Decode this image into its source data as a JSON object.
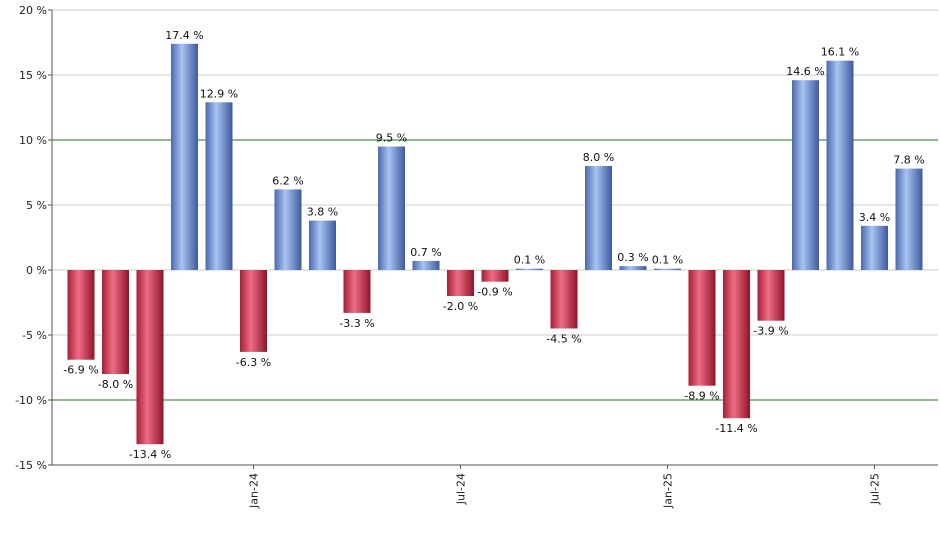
{
  "chart_data": {
    "type": "bar",
    "categories": [
      "",
      "",
      "",
      "",
      "",
      "Jan-24",
      "",
      "",
      "",
      "",
      "",
      "Jul-24",
      "",
      "",
      "",
      "",
      "",
      "Jan-25",
      "",
      "",
      "",
      "",
      "",
      "Jul-25",
      ""
    ],
    "values": [
      -6.9,
      -8.0,
      -13.4,
      17.4,
      12.9,
      -6.3,
      6.2,
      3.8,
      -3.3,
      9.5,
      0.7,
      -2.0,
      -0.9,
      0.1,
      -4.5,
      8.0,
      0.3,
      0.1,
      -8.9,
      -11.4,
      -3.9,
      14.6,
      16.1,
      3.4,
      7.8
    ],
    "data_labels": [
      "-6.9 %",
      "-8.0 %",
      "-13.4 %",
      "17.4 %",
      "12.9 %",
      "-6.3 %",
      "6.2 %",
      "3.8 %",
      "-3.3 %",
      "9.5 %",
      "0.7 %",
      "-2.0 %",
      "-0.9 %",
      "0.1 %",
      "-4.5 %",
      "8.0 %",
      "0.3 %",
      "0.1 %",
      "-8.9 %",
      "-11.4 %",
      "-3.9 %",
      "14.6 %",
      "16.1 %",
      "3.4 %",
      "7.8 %"
    ],
    "ylim": [
      -15,
      20
    ],
    "yticks": [
      20,
      15,
      10,
      5,
      0,
      -5,
      -10,
      -15
    ],
    "ytick_labels": [
      "20 %",
      "15 %",
      "10 %",
      "5 %",
      "0 %",
      "-5 %",
      "-10 %",
      "-15 %"
    ],
    "reference_lines": [
      10,
      -10
    ],
    "grid": true,
    "title": "",
    "xlabel": "",
    "ylabel": "",
    "colors": {
      "positive": "#6f93dc",
      "negative": "#c8334e",
      "reference_line": "#1f7a1f",
      "grid": "#cccccc"
    }
  }
}
